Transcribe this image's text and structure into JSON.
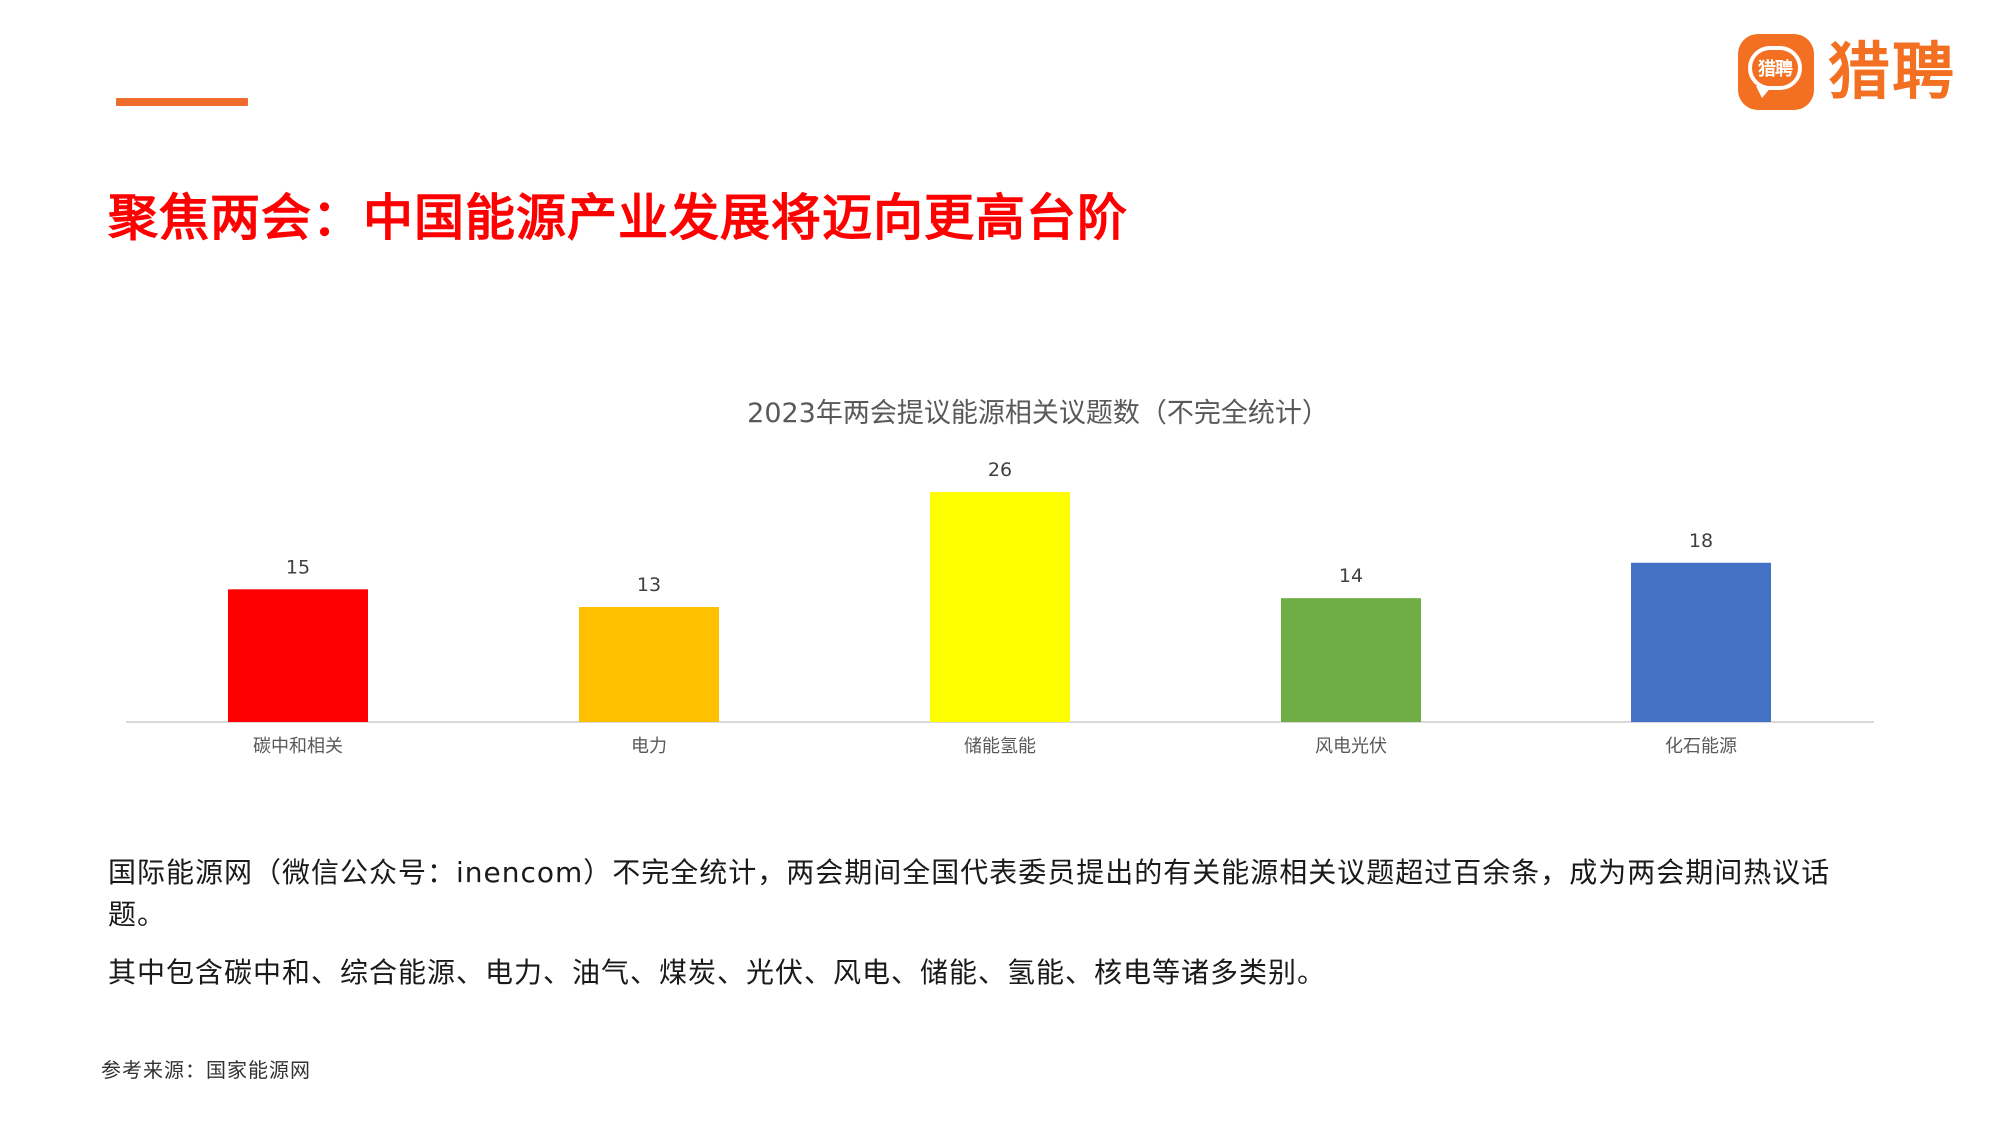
{
  "brand": {
    "logo_badge_text": "猎聘",
    "logo_text": "猎聘",
    "accent_color": "#ef6c2c",
    "logo_color": "#f36f21",
    "logo_icon": "chat-bubble-icon"
  },
  "page": {
    "title": "聚焦两会：中国能源产业发展将迈向更高台阶",
    "title_color": "#ff0000",
    "paragraph_1": "国际能源网（微信公众号：inencom）不完全统计，两会期间全国代表委员提出的有关能源相关议题超过百余条，成为两会期间热议话题。",
    "paragraph_2": "其中包含碳中和、综合能源、电力、油气、煤炭、光伏、风电、储能、氢能、核电等诸多类别。",
    "source": "参考来源：国家能源网"
  },
  "chart_data": {
    "type": "bar",
    "title": "2023年两会提议能源相关议题数（不完全统计）",
    "categories": [
      "碳中和相关",
      "电力",
      "储能氢能",
      "风电光伏",
      "化石能源"
    ],
    "values": [
      15,
      13,
      26,
      14,
      18
    ],
    "data_labels": [
      "15",
      "13",
      "26",
      "14",
      "18"
    ],
    "colors": [
      "#ff0000",
      "#ffc000",
      "#ffff00",
      "#70ad47",
      "#4472c4"
    ],
    "xlabel": "",
    "ylabel": "",
    "ylim": [
      0,
      26
    ],
    "grid": false,
    "legend": "none",
    "axis_line_color": "#d9d9d9"
  }
}
